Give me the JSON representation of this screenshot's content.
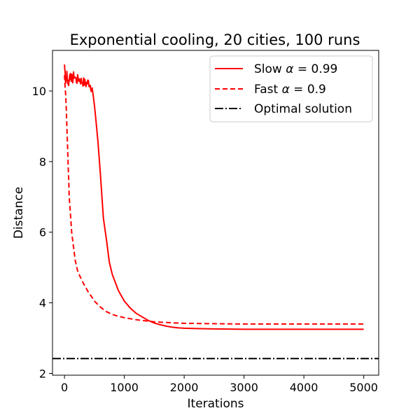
{
  "chart_data": {
    "type": "line",
    "title": "Exponential cooling, 20 cities, 100 runs",
    "xlabel": "Iterations",
    "ylabel": "Distance",
    "xlim": [
      -200,
      5250
    ],
    "ylim": [
      1.95,
      11.15
    ],
    "xticks": [
      0,
      1000,
      2000,
      3000,
      4000,
      5000
    ],
    "yticks": [
      2,
      4,
      6,
      8,
      10
    ],
    "grid": false,
    "legend_position": "top-right",
    "series": [
      {
        "name": "Slow α = 0.99",
        "legend_prefix": "Slow ",
        "legend_symbol": "α",
        "legend_suffix": " = 0.99",
        "color": "#ff0000",
        "style": "solid",
        "noisy_until": 450,
        "x": [
          0,
          20,
          40,
          60,
          80,
          100,
          130,
          160,
          200,
          240,
          280,
          320,
          360,
          400,
          440,
          470,
          500,
          530,
          560,
          600,
          650,
          700,
          750,
          800,
          900,
          1000,
          1100,
          1200,
          1300,
          1400,
          1500,
          1600,
          1700,
          1800,
          1900,
          2000,
          2200,
          2500,
          3000,
          3500,
          4000,
          4500,
          5000
        ],
        "y": [
          10.75,
          10.3,
          10.45,
          10.2,
          10.35,
          10.5,
          10.3,
          10.45,
          10.3,
          10.35,
          10.28,
          10.25,
          10.2,
          10.25,
          10.15,
          10.0,
          9.6,
          9.1,
          8.55,
          7.65,
          6.4,
          5.8,
          5.15,
          4.8,
          4.35,
          4.05,
          3.85,
          3.7,
          3.6,
          3.5,
          3.43,
          3.38,
          3.34,
          3.31,
          3.29,
          3.28,
          3.27,
          3.26,
          3.25,
          3.25,
          3.25,
          3.25,
          3.25
        ]
      },
      {
        "name": "Fast α = 0.9",
        "legend_prefix": "Fast ",
        "legend_symbol": "α",
        "legend_suffix": " = 0.9",
        "color": "#ff0000",
        "style": "dashed",
        "x": [
          0,
          10,
          20,
          30,
          40,
          50,
          60,
          70,
          80,
          100,
          120,
          150,
          180,
          220,
          260,
          300,
          350,
          400,
          450,
          500,
          600,
          700,
          800,
          900,
          1000,
          1100,
          1200,
          1300,
          1400,
          1500,
          1600,
          2000,
          2500,
          3000,
          3500,
          4000,
          4500,
          5000
        ],
        "y": [
          10.45,
          10.1,
          9.9,
          9.5,
          9.0,
          8.5,
          8.0,
          7.5,
          7.0,
          6.5,
          6.0,
          5.6,
          5.2,
          4.9,
          4.75,
          4.6,
          4.45,
          4.3,
          4.18,
          4.05,
          3.88,
          3.75,
          3.67,
          3.62,
          3.58,
          3.55,
          3.52,
          3.5,
          3.48,
          3.46,
          3.45,
          3.42,
          3.41,
          3.4,
          3.4,
          3.4,
          3.4,
          3.4
        ]
      },
      {
        "name": "Optimal solution",
        "color": "#000000",
        "style": "dashdot",
        "x": [
          -200,
          5250
        ],
        "y": [
          2.42,
          2.42
        ]
      }
    ]
  }
}
